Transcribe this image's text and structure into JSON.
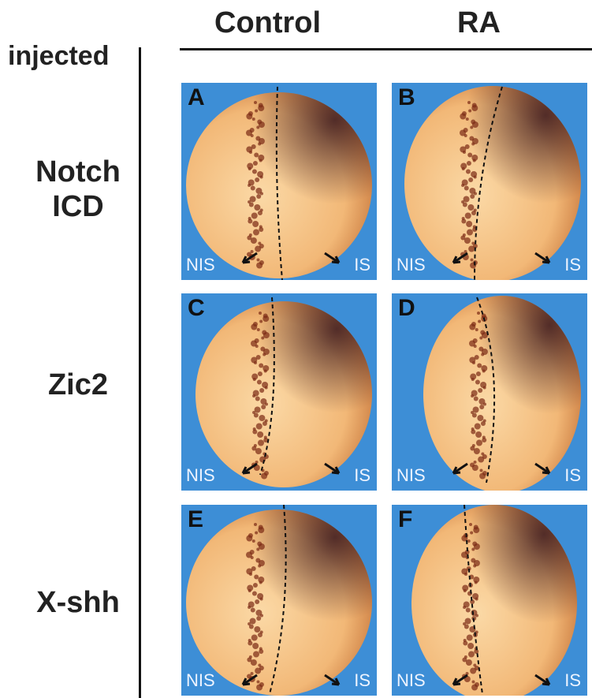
{
  "columns": [
    "Control",
    "RA"
  ],
  "row_header": "injected",
  "rows": [
    {
      "label1": "Notch",
      "label2": "ICD"
    },
    {
      "label1": "Zic2",
      "label2": ""
    },
    {
      "label1": "X-shh",
      "label2": ""
    }
  ],
  "panels": [
    {
      "letter": "A",
      "left": "NIS",
      "right": "IS"
    },
    {
      "letter": "B",
      "left": "NIS",
      "right": "IS"
    },
    {
      "letter": "C",
      "left": "NIS",
      "right": "IS"
    },
    {
      "letter": "D",
      "left": "NIS",
      "right": "IS"
    },
    {
      "letter": "E",
      "left": "NIS",
      "right": "IS"
    },
    {
      "letter": "F",
      "left": "NIS",
      "right": "IS"
    }
  ],
  "colors": {
    "background": "#3d8ed6",
    "embryo": "#f2b877",
    "stain": "#7a2a14"
  }
}
